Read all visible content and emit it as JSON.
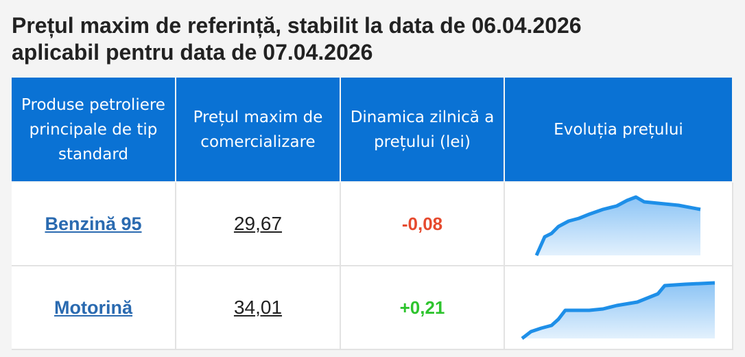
{
  "header": {
    "title_lines": [
      "Prețul maxim de referință, stabilit la data de 06.04.2026",
      "aplicabil pentru data de 07.04.2026"
    ]
  },
  "table": {
    "columns": [
      "Produse petroliere principale de tip standard",
      "Prețul maxim de comercializare",
      "Dinamica zilnică a prețului (lei)",
      "Evoluția prețului"
    ],
    "rows": [
      [
        "Benzină 95",
        "29,67",
        "-0,08"
      ],
      [
        "Motorină",
        "34,01",
        "+0,21"
      ]
    ]
  }
}
